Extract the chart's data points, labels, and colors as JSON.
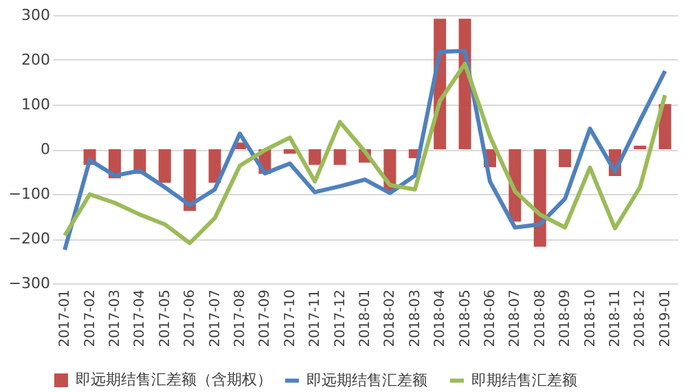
{
  "chart_data": {
    "type": "bar",
    "categories": [
      "2017-01",
      "2017-02",
      "2017-03",
      "2017-04",
      "2017-05",
      "2017-06",
      "2017-07",
      "2017-08",
      "2017-09",
      "2017-10",
      "2017-11",
      "2017-12",
      "2018-01",
      "2018-02",
      "2018-03",
      "2018-04",
      "2018-05",
      "2018-06",
      "2018-07",
      "2018-08",
      "2018-09",
      "2018-10",
      "2018-11",
      "2018-12",
      "2019-01"
    ],
    "series": [
      {
        "name": "即远期结售汇差额（含期权）",
        "color": "#c0504d",
        "values": [
          null,
          -35,
          -65,
          -55,
          -75,
          -138,
          -75,
          15,
          -55,
          -10,
          -35,
          -35,
          -30,
          -95,
          -20,
          292,
          292,
          -40,
          -162,
          -218,
          -40,
          0,
          -60,
          8,
          101
        ]
      },
      {
        "name": "即远期结售汇差额",
        "type": "line",
        "color": "#4f81bd",
        "values": [
          -225,
          -24,
          -59,
          -48,
          -85,
          -125,
          -90,
          35,
          -54,
          -32,
          -96,
          -83,
          -68,
          -98,
          -59,
          218,
          220,
          -72,
          -175,
          -168,
          -111,
          46,
          -50,
          64,
          175
        ]
      },
      {
        "name": "即期结售汇差额",
        "type": "line",
        "color": "#9bbb59",
        "values": [
          -193,
          -101,
          -120,
          -146,
          -168,
          -210,
          -154,
          -37,
          -2,
          26,
          -72,
          61,
          -5,
          -80,
          -90,
          108,
          191,
          29,
          -94,
          -146,
          -175,
          -41,
          -177,
          -85,
          121
        ]
      }
    ],
    "ylim": [
      -300,
      300
    ],
    "yticks": [
      -300,
      -200,
      -100,
      0,
      100,
      200,
      300
    ],
    "grid": "y",
    "legend": "bottom",
    "marker": "none",
    "line_style": "solid"
  }
}
